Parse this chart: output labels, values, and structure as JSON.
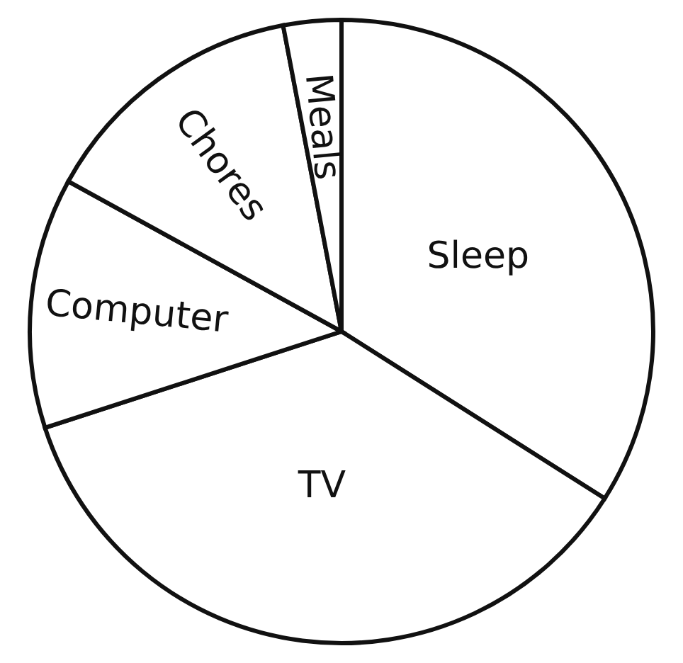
{
  "chart_data": {
    "type": "pie",
    "categories": [
      "Sleep",
      "TV",
      "Computer",
      "Chores",
      "Meals"
    ],
    "values": [
      34,
      36,
      13,
      14,
      3
    ],
    "colors": [
      "#ffffff",
      "#ffffff",
      "#ffffff",
      "#ffffff",
      "#ffffff"
    ]
  }
}
